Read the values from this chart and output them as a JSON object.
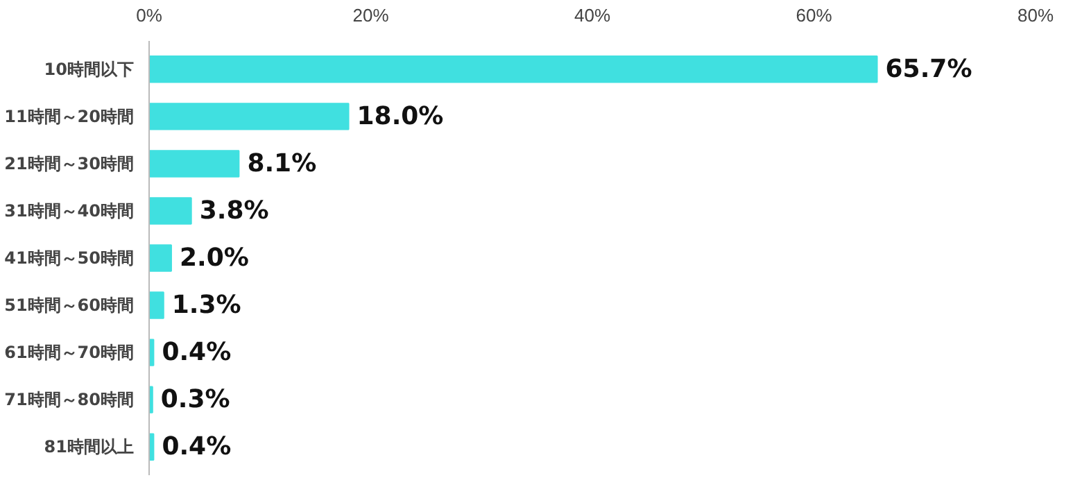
{
  "chart_data": {
    "type": "bar",
    "orientation": "horizontal",
    "categories": [
      "10時間以下",
      "11時間～20時間",
      "21時間～30時間",
      "31時間～40時間",
      "41時間～50時間",
      "51時間～60時間",
      "61時間～70時間",
      "71時間～80時間",
      "81時間以上"
    ],
    "values": [
      65.7,
      18.0,
      8.1,
      3.8,
      2.0,
      1.3,
      0.4,
      0.3,
      0.4
    ],
    "value_labels": [
      "65.7%",
      "18.0%",
      "8.1%",
      "3.8%",
      "2.0%",
      "1.3%",
      "0.4%",
      "0.3%",
      "0.4%"
    ],
    "color": "#40e0e0",
    "xlim": [
      0,
      80
    ],
    "xticks": [
      {
        "value": 0,
        "label": "0%"
      },
      {
        "value": 20,
        "label": "20%"
      },
      {
        "value": 40,
        "label": "40%"
      },
      {
        "value": 60,
        "label": "60%"
      },
      {
        "value": 80,
        "label": "80%"
      }
    ],
    "grid": false
  }
}
